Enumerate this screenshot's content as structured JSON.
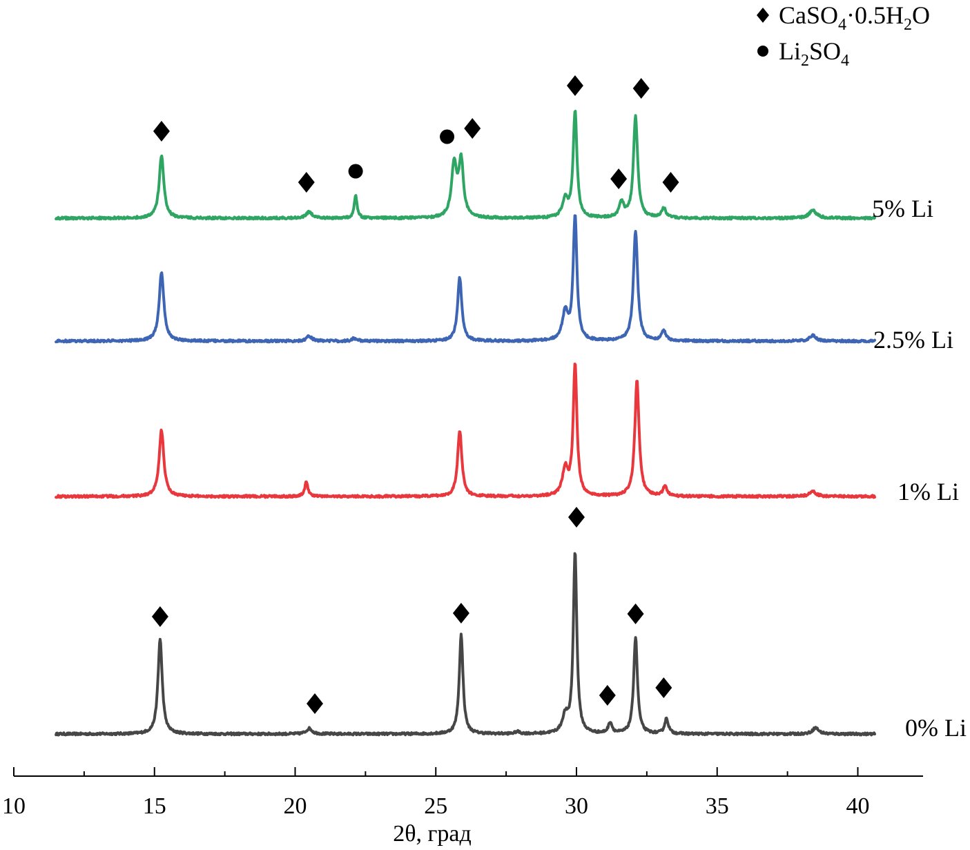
{
  "chart_data": {
    "type": "line",
    "title": "",
    "xlabel": "2θ, град",
    "ylabel": "",
    "xlim": [
      10,
      42.3
    ],
    "x_ticks": [
      "10",
      "15",
      "20",
      "25",
      "30",
      "35",
      "40"
    ],
    "x_tick_values": [
      10,
      15,
      20,
      25,
      30,
      35,
      40
    ],
    "x_range": [
      11.5,
      40.6
    ],
    "legend": {
      "placement": "top-right",
      "entries": [
        {
          "marker": "diamond",
          "label": "CaSO",
          "sub1": "4",
          "mid": "·0.5H",
          "sub2": "2",
          "tail": "O"
        },
        {
          "marker": "circle",
          "label": "Li",
          "sub1": "2",
          "mid": "SO",
          "sub2": "4",
          "tail": ""
        }
      ]
    },
    "series": [
      {
        "name": "0% Li",
        "color": "#464646",
        "peaks": [
          {
            "x": 15.2,
            "h": 138,
            "w": 0.09
          },
          {
            "x": 20.5,
            "h": 8,
            "w": 0.12
          },
          {
            "x": 25.9,
            "h": 144,
            "w": 0.08
          },
          {
            "x": 27.9,
            "h": 3,
            "w": 0.1
          },
          {
            "x": 29.6,
            "h": 24,
            "w": 0.12
          },
          {
            "x": 29.95,
            "h": 262,
            "w": 0.075
          },
          {
            "x": 31.2,
            "h": 16,
            "w": 0.08
          },
          {
            "x": 32.1,
            "h": 140,
            "w": 0.08
          },
          {
            "x": 33.2,
            "h": 22,
            "w": 0.08
          },
          {
            "x": 38.5,
            "h": 9,
            "w": 0.13
          }
        ],
        "markers": [
          {
            "x": 15.2,
            "type": "diamond",
            "h": 170
          },
          {
            "x": 20.7,
            "type": "diamond",
            "h": 44
          },
          {
            "x": 25.9,
            "type": "diamond",
            "h": 175
          },
          {
            "x": 30.0,
            "type": "diamond",
            "h": 314
          },
          {
            "x": 31.1,
            "type": "diamond",
            "h": 56
          },
          {
            "x": 32.1,
            "type": "diamond",
            "h": 174
          },
          {
            "x": 33.1,
            "type": "diamond",
            "h": 67
          }
        ]
      },
      {
        "name": "1% Li",
        "color": "#e8373d",
        "peaks": [
          {
            "x": 15.25,
            "h": 96,
            "w": 0.1
          },
          {
            "x": 20.4,
            "h": 21,
            "w": 0.07
          },
          {
            "x": 25.85,
            "h": 96,
            "w": 0.09
          },
          {
            "x": 29.6,
            "h": 38,
            "w": 0.12
          },
          {
            "x": 29.95,
            "h": 190,
            "w": 0.08
          },
          {
            "x": 32.15,
            "h": 168,
            "w": 0.09
          },
          {
            "x": 33.15,
            "h": 14,
            "w": 0.09
          },
          {
            "x": 38.4,
            "h": 7,
            "w": 0.15
          }
        ],
        "markers": []
      },
      {
        "name": "2.5% Li",
        "color": "#3d65b3",
        "peaks": [
          {
            "x": 15.25,
            "h": 100,
            "w": 0.1
          },
          {
            "x": 20.5,
            "h": 7,
            "w": 0.12
          },
          {
            "x": 22.1,
            "h": 4,
            "w": 0.1
          },
          {
            "x": 25.85,
            "h": 92,
            "w": 0.09
          },
          {
            "x": 29.6,
            "h": 40,
            "w": 0.12
          },
          {
            "x": 29.95,
            "h": 180,
            "w": 0.08
          },
          {
            "x": 32.1,
            "h": 160,
            "w": 0.09
          },
          {
            "x": 33.1,
            "h": 15,
            "w": 0.09
          },
          {
            "x": 38.4,
            "h": 8,
            "w": 0.14
          }
        ],
        "markers": []
      },
      {
        "name": "5% Li",
        "color": "#2fa563",
        "peaks": [
          {
            "x": 15.25,
            "h": 90,
            "w": 0.1
          },
          {
            "x": 20.5,
            "h": 9,
            "w": 0.12
          },
          {
            "x": 22.15,
            "h": 34,
            "w": 0.06
          },
          {
            "x": 25.65,
            "h": 76,
            "w": 0.11
          },
          {
            "x": 25.9,
            "h": 80,
            "w": 0.1
          },
          {
            "x": 29.6,
            "h": 26,
            "w": 0.12
          },
          {
            "x": 29.95,
            "h": 154,
            "w": 0.08
          },
          {
            "x": 31.6,
            "h": 22,
            "w": 0.1
          },
          {
            "x": 32.1,
            "h": 146,
            "w": 0.09
          },
          {
            "x": 33.1,
            "h": 15,
            "w": 0.09
          },
          {
            "x": 38.4,
            "h": 11,
            "w": 0.16
          }
        ],
        "markers": [
          {
            "x": 15.25,
            "type": "diamond",
            "h": 126
          },
          {
            "x": 20.4,
            "type": "diamond",
            "h": 52
          },
          {
            "x": 22.15,
            "type": "circle",
            "h": 68
          },
          {
            "x": 25.4,
            "type": "circle",
            "h": 118
          },
          {
            "x": 26.3,
            "type": "diamond",
            "h": 130
          },
          {
            "x": 29.95,
            "type": "diamond",
            "h": 192
          },
          {
            "x": 32.3,
            "type": "diamond",
            "h": 188
          },
          {
            "x": 31.5,
            "type": "diamond",
            "h": 57
          },
          {
            "x": 33.35,
            "type": "diamond",
            "h": 52
          }
        ]
      }
    ]
  }
}
